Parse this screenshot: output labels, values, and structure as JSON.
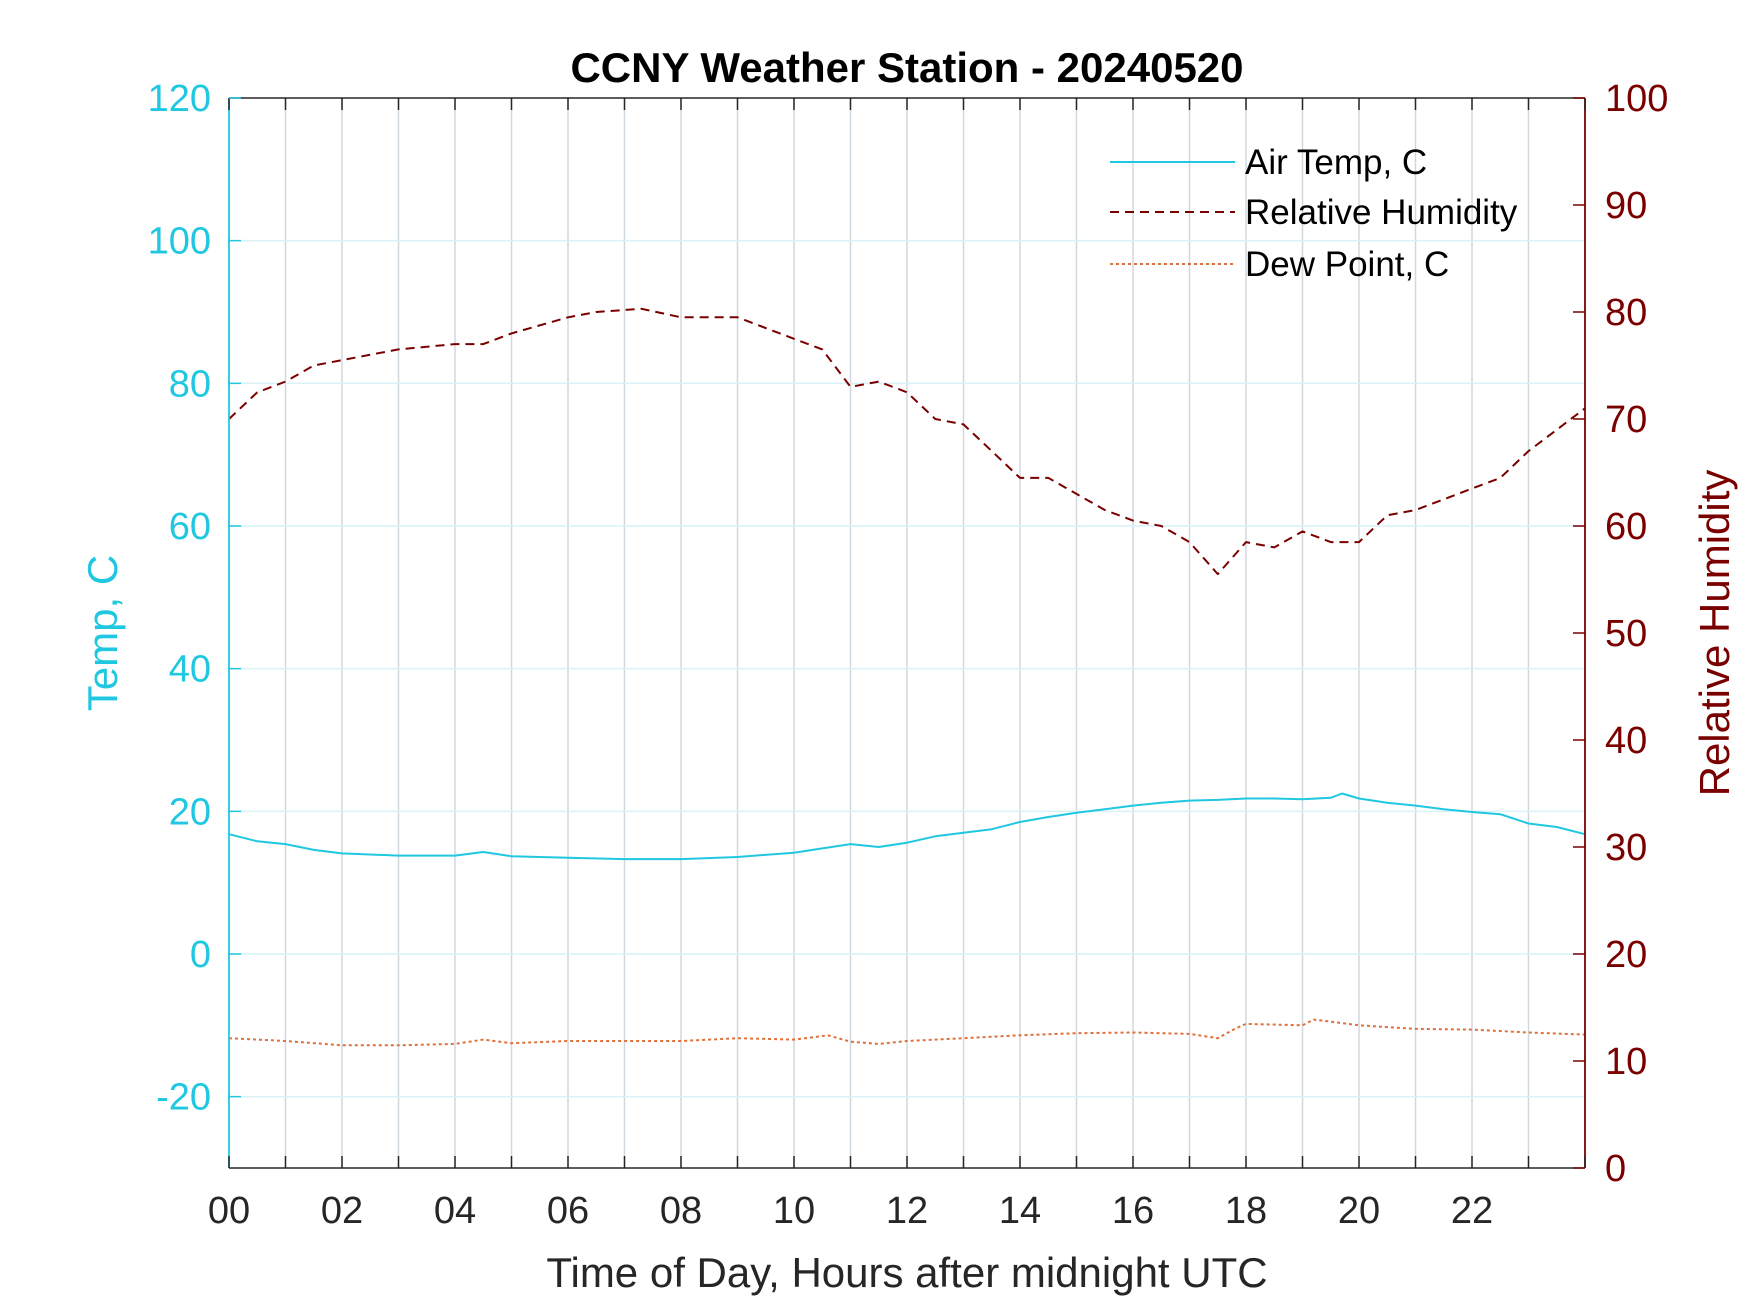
{
  "chart_data": {
    "type": "line",
    "title": "CCNY Weather Station - 20240520",
    "xlabel": "Time of Day, Hours after midnight UTC",
    "ylabel_left": "Temp, C",
    "ylabel_right": "Relative Humidity",
    "xlim": [
      0,
      24
    ],
    "ylim_left": [
      -30,
      120
    ],
    "ylim_right": [
      0,
      100
    ],
    "x_ticks": [
      0,
      2,
      4,
      6,
      8,
      10,
      12,
      14,
      16,
      18,
      20,
      22
    ],
    "x_tick_labels": [
      "00",
      "02",
      "04",
      "06",
      "08",
      "10",
      "12",
      "14",
      "16",
      "18",
      "20",
      "22"
    ],
    "y_left_ticks": [
      -20,
      0,
      20,
      40,
      60,
      80,
      100,
      120
    ],
    "y_left_tick_labels": [
      "-20",
      "0",
      "20",
      "40",
      "60",
      "80",
      "100",
      "120"
    ],
    "y_right_ticks": [
      0,
      10,
      20,
      30,
      40,
      50,
      60,
      70,
      80,
      90,
      100
    ],
    "y_right_tick_labels": [
      "0",
      "10",
      "20",
      "30",
      "40",
      "50",
      "60",
      "70",
      "80",
      "90",
      "100"
    ],
    "grid": true,
    "legend_position": "top-right",
    "colors": {
      "left_axis": "#1fc8e0",
      "right_axis": "#7a0000",
      "dew": "#e0703a",
      "grid_v": "#d0d8df",
      "grid_h": "#d8f2f8"
    },
    "series": [
      {
        "name": "Air Temp, C",
        "axis": "left",
        "style": "solid",
        "color": "#1fc8e0",
        "x": [
          0,
          0.5,
          1,
          1.5,
          2,
          3,
          4,
          4.5,
          5,
          6,
          7,
          8,
          9,
          10,
          10.5,
          11,
          11.5,
          12,
          12.5,
          13,
          13.5,
          14,
          14.5,
          15,
          15.5,
          16,
          16.5,
          17,
          17.5,
          18,
          18.5,
          19,
          19.5,
          19.7,
          20,
          20.5,
          21,
          21.5,
          22,
          22.5,
          23,
          23.5,
          24
        ],
        "values": [
          16.8,
          15.8,
          15.4,
          14.6,
          14.1,
          13.8,
          13.8,
          14.3,
          13.7,
          13.5,
          13.3,
          13.3,
          13.6,
          14.2,
          14.8,
          15.4,
          15.0,
          15.6,
          16.5,
          17.0,
          17.5,
          18.5,
          19.2,
          19.8,
          20.3,
          20.8,
          21.2,
          21.5,
          21.6,
          21.8,
          21.8,
          21.7,
          21.9,
          22.5,
          21.8,
          21.2,
          20.8,
          20.3,
          19.9,
          19.6,
          18.3,
          17.8,
          16.8
        ]
      },
      {
        "name": "Relative Humidity",
        "axis": "right",
        "style": "dashed",
        "color": "#7a0000",
        "x": [
          0,
          0.5,
          1,
          1.5,
          2,
          3,
          4,
          4.5,
          5,
          6,
          6.5,
          7.3,
          8,
          9,
          10,
          10.5,
          11,
          11.5,
          12,
          12.5,
          13,
          13.5,
          14,
          14.5,
          15,
          15.5,
          16,
          16.5,
          17,
          17.5,
          18,
          18.5,
          19,
          19.5,
          20,
          20.5,
          21,
          21.5,
          22,
          22.5,
          23,
          23.5,
          24
        ],
        "values": [
          70,
          72.5,
          73.5,
          75,
          75.5,
          76.5,
          77,
          77,
          78,
          79.5,
          80,
          80.3,
          79.5,
          79.5,
          77.5,
          76.5,
          73,
          73.5,
          72.5,
          70,
          69.5,
          67,
          64.5,
          64.5,
          63,
          61.5,
          60.5,
          60,
          58.5,
          55.5,
          58.5,
          58,
          59.5,
          58.5,
          58.5,
          61,
          61.5,
          62.5,
          63.5,
          64.5,
          67,
          69,
          71
        ]
      },
      {
        "name": "Dew Point, C",
        "axis": "left",
        "style": "dotted",
        "color": "#e0703a",
        "x": [
          0,
          1,
          2,
          3,
          4,
          4.5,
          5,
          6,
          7,
          8,
          9,
          10,
          10.6,
          11,
          11.5,
          12,
          13,
          14,
          15,
          16,
          17,
          17.5,
          17.8,
          18,
          19,
          19.2,
          20,
          21,
          22,
          23,
          24
        ],
        "values": [
          -11.8,
          -12.2,
          -12.8,
          -12.8,
          -12.6,
          -12.0,
          -12.5,
          -12.2,
          -12.2,
          -12.2,
          -11.8,
          -12.0,
          -11.4,
          -12.3,
          -12.6,
          -12.2,
          -11.8,
          -11.4,
          -11.1,
          -11.0,
          -11.2,
          -11.8,
          -10.5,
          -9.8,
          -10.0,
          -9.2,
          -10.0,
          -10.5,
          -10.6,
          -11.0,
          -11.3
        ]
      }
    ]
  }
}
